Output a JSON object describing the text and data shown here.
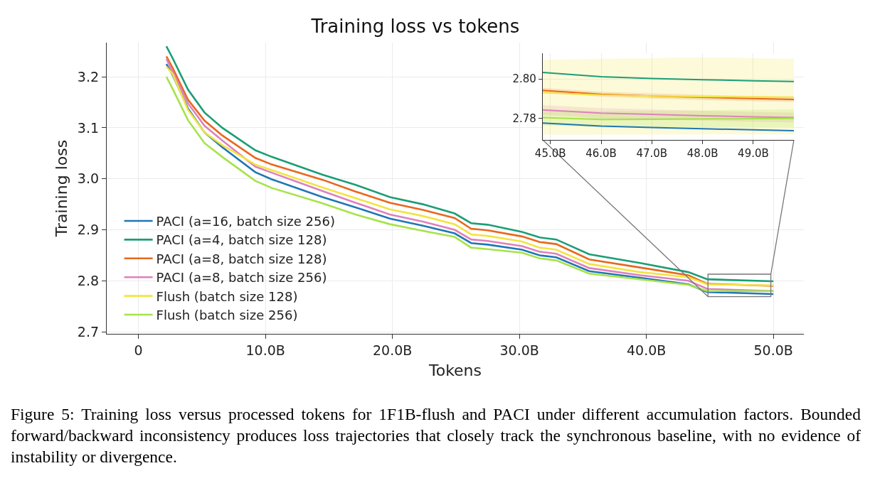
{
  "chart_data": [
    {
      "type": "line",
      "title": "Training loss vs tokens",
      "xlabel": "Tokens",
      "ylabel": "Training loss",
      "x": [
        2.2,
        2.7,
        3.9,
        5.2,
        6.6,
        9.2,
        10.5,
        14.5,
        17.1,
        19.8,
        22.4,
        24.9,
        26.2,
        27.5,
        30.2,
        31.6,
        32.9,
        35.5,
        39.5,
        43.3,
        44.8,
        50
      ],
      "series": [
        {
          "name": "PACI (a=16, batch size 256)",
          "color": "#1f77b4",
          "values": [
            3.225,
            3.203,
            3.138,
            3.091,
            3.062,
            3.013,
            2.999,
            2.964,
            2.944,
            2.922,
            2.908,
            2.893,
            2.874,
            2.871,
            2.861,
            2.85,
            2.846,
            2.819,
            2.806,
            2.793,
            2.778,
            2.774
          ]
        },
        {
          "name": "PACI (a=4, batch size 128)",
          "color": "#1b9e77",
          "values": [
            3.26,
            3.236,
            3.175,
            3.13,
            3.1,
            3.056,
            3.043,
            3.008,
            2.988,
            2.964,
            2.95,
            2.932,
            2.913,
            2.91,
            2.896,
            2.885,
            2.881,
            2.852,
            2.835,
            2.817,
            2.803,
            2.799
          ]
        },
        {
          "name": "PACI (a=8, batch size 128)",
          "color": "#e8681e",
          "values": [
            3.24,
            3.217,
            3.155,
            3.114,
            3.085,
            3.041,
            3.028,
            2.998,
            2.975,
            2.953,
            2.939,
            2.923,
            2.902,
            2.899,
            2.887,
            2.876,
            2.872,
            2.842,
            2.826,
            2.811,
            2.794,
            2.79
          ]
        },
        {
          "name": "PACI (a=8, batch size 256)",
          "color": "#dd82bd",
          "values": [
            3.235,
            3.21,
            3.148,
            3.104,
            3.075,
            3.024,
            3.012,
            2.976,
            2.953,
            2.93,
            2.916,
            2.9,
            2.881,
            2.878,
            2.868,
            2.857,
            2.853,
            2.825,
            2.811,
            2.8,
            2.784,
            2.78
          ]
        },
        {
          "name": "Flush (batch size 128)",
          "color": "#f2e441",
          "values": [
            3.22,
            3.205,
            3.135,
            3.091,
            3.066,
            3.028,
            3.017,
            2.983,
            2.962,
            2.94,
            2.927,
            2.911,
            2.891,
            2.888,
            2.877,
            2.865,
            2.861,
            2.833,
            2.817,
            2.807,
            2.793,
            2.791
          ]
        },
        {
          "name": "Flush (batch size 256)",
          "color": "#a6e34a",
          "values": [
            3.2,
            3.176,
            3.115,
            3.07,
            3.043,
            2.996,
            2.982,
            2.952,
            2.93,
            2.911,
            2.898,
            2.886,
            2.865,
            2.862,
            2.855,
            2.844,
            2.84,
            2.814,
            2.803,
            2.792,
            2.78,
            2.78
          ]
        }
      ],
      "xlim": [
        -2.5,
        52.4
      ],
      "ylim": [
        2.696,
        3.267
      ],
      "xticks": [
        {
          "value": 0,
          "label": "0"
        },
        {
          "value": 10,
          "label": "10.0B"
        },
        {
          "value": 20,
          "label": "20.0B"
        },
        {
          "value": 30,
          "label": "30.0B"
        },
        {
          "value": 40,
          "label": "40.0B"
        },
        {
          "value": 50,
          "label": "50.0B"
        }
      ],
      "yticks": [
        2.7,
        2.8,
        2.9,
        {
          "value": 3,
          "label": "3.0"
        },
        3.1,
        3.2
      ],
      "grid": true,
      "legend": "bottom left",
      "annotations": [
        "Figure 5: Training loss versus processed tokens for 1F1B-flush and PACI under different accumulation factors. Bounded forward/backward inconsistency produces loss trajectories that closely track the synchronous baseline, with no evidence of instability or divergence."
      ]
    },
    {
      "type": "line",
      "x": [
        44.85,
        46,
        47,
        48,
        49,
        49.8
      ],
      "series": [
        {
          "color": "#1f77b4",
          "values": [
            2.7776,
            2.776,
            2.7753,
            2.7747,
            2.7741,
            2.7737
          ]
        },
        {
          "color": "#1b9e77",
          "values": [
            2.8033,
            2.8011,
            2.8002,
            2.7996,
            2.799,
            2.7987
          ]
        },
        {
          "color": "#e8681e",
          "values": [
            2.7942,
            2.7922,
            2.7913,
            2.7906,
            2.79,
            2.7896
          ],
          "lower": [
            2.793,
            2.791,
            2.79,
            2.7893,
            2.7887,
            2.7883
          ],
          "upper": [
            2.7954,
            2.7934,
            2.7926,
            2.7919,
            2.7913,
            2.7909
          ]
        },
        {
          "color": "#dd82bd",
          "values": [
            2.7842,
            2.7826,
            2.782,
            2.7813,
            2.7807,
            2.7804
          ],
          "lower": [
            2.7817,
            2.7801,
            2.7795,
            2.7788,
            2.7782,
            2.7779
          ],
          "upper": [
            2.7867,
            2.7851,
            2.7845,
            2.7838,
            2.7832,
            2.7829
          ]
        },
        {
          "color": "#f2e441",
          "values": [
            2.793,
            2.7918,
            2.7913,
            2.791,
            2.7908,
            2.7907
          ],
          "lower": [
            2.7716,
            2.7716,
            2.7717,
            2.7718,
            2.7718,
            2.7718
          ],
          "upper": [
            2.8097,
            2.8102,
            2.8105,
            2.811,
            2.8105,
            2.8102
          ]
        },
        {
          "color": "#a6e34a",
          "values": [
            2.7804,
            2.7794,
            2.7795,
            2.7796,
            2.7798,
            2.7799
          ],
          "lower": [
            2.7764,
            2.7754,
            2.7752,
            2.7752,
            2.7752,
            2.7752
          ],
          "upper": [
            2.7844,
            2.7836,
            2.7838,
            2.784,
            2.7843,
            2.7845
          ]
        }
      ],
      "xlim": [
        44.85,
        49.8
      ],
      "ylim": [
        2.769,
        2.813
      ],
      "xticks": [
        {
          "value": 45,
          "label": "45.0B"
        },
        {
          "value": 46,
          "label": "46.0B"
        },
        {
          "value": 47,
          "label": "47.0B"
        },
        {
          "value": 48,
          "label": "48.0B"
        },
        {
          "value": 49,
          "label": "49.0B"
        }
      ],
      "yticks": [
        {
          "value": 2.78,
          "label": "2.78"
        },
        {
          "value": 2.8,
          "label": "2.80"
        }
      ],
      "grid": true
    }
  ]
}
